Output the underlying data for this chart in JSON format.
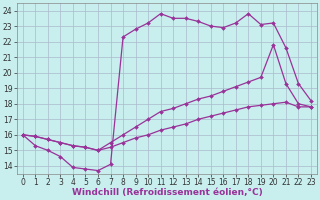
{
  "background_color": "#c8eeee",
  "grid_color": "#aabbcc",
  "line_color": "#993399",
  "marker": "D",
  "marker_size": 2.0,
  "line_width": 0.9,
  "xlabel": "Windchill (Refroidissement éolien,°C)",
  "xlabel_fontsize": 6.5,
  "xlim": [
    -0.5,
    23.5
  ],
  "ylim": [
    13.5,
    24.5
  ],
  "ytick_vals": [
    14,
    15,
    16,
    17,
    18,
    19,
    20,
    21,
    22,
    23,
    24
  ],
  "xtick_vals": [
    0,
    1,
    2,
    3,
    4,
    5,
    6,
    7,
    8,
    9,
    10,
    11,
    12,
    13,
    14,
    15,
    16,
    17,
    18,
    19,
    20,
    21,
    22,
    23
  ],
  "tick_fontsize": 5.5,
  "line1_x": [
    0,
    1,
    2,
    3,
    4,
    5,
    6,
    7,
    8,
    9,
    10,
    11,
    12,
    13,
    14,
    15,
    16,
    17,
    18,
    19,
    20,
    21,
    22,
    23
  ],
  "line1_y": [
    16,
    15.3,
    15.0,
    14.6,
    13.9,
    13.8,
    13.7,
    14.1,
    22.3,
    22.8,
    23.2,
    23.8,
    23.5,
    23.5,
    23.3,
    23.0,
    22.9,
    23.2,
    23.8,
    23.1,
    23.2,
    21.6,
    19.3,
    18.2
  ],
  "line2_x": [
    0,
    1,
    2,
    3,
    4,
    5,
    6,
    7,
    8,
    9,
    10,
    11,
    12,
    13,
    14,
    15,
    16,
    17,
    18,
    19,
    20,
    21,
    22,
    23
  ],
  "line2_y": [
    16.0,
    15.9,
    15.7,
    15.5,
    15.3,
    15.2,
    15.0,
    15.5,
    16.0,
    16.5,
    17.0,
    17.5,
    17.7,
    18.0,
    18.3,
    18.5,
    18.8,
    19.1,
    19.4,
    19.7,
    21.8,
    19.3,
    18.0,
    17.8
  ],
  "line3_x": [
    0,
    1,
    2,
    3,
    4,
    5,
    6,
    7,
    8,
    9,
    10,
    11,
    12,
    13,
    14,
    15,
    16,
    17,
    18,
    19,
    20,
    21,
    22,
    23
  ],
  "line3_y": [
    16.0,
    15.9,
    15.7,
    15.5,
    15.3,
    15.2,
    15.0,
    15.2,
    15.5,
    15.8,
    16.0,
    16.3,
    16.5,
    16.7,
    17.0,
    17.2,
    17.4,
    17.6,
    17.8,
    17.9,
    18.0,
    18.1,
    17.8,
    17.8
  ]
}
